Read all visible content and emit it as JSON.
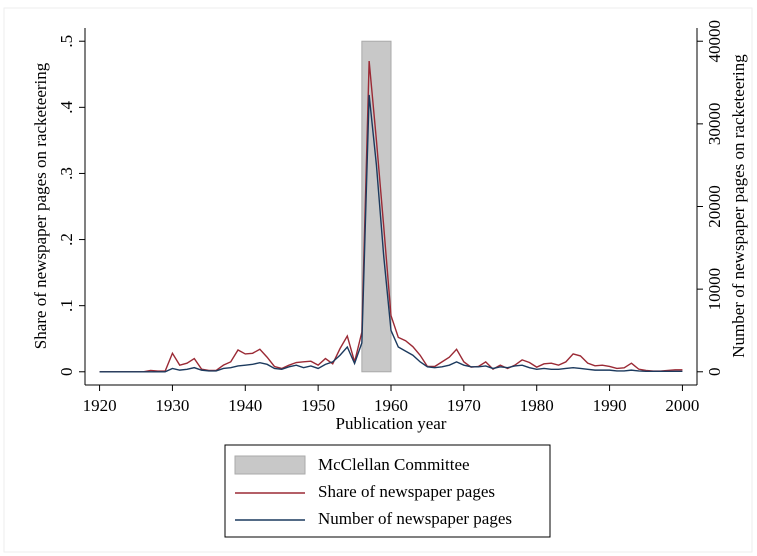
{
  "chart_data": {
    "type": "line",
    "x_label": "Publication year",
    "y_label": "Share of newspaper pages on racketeering",
    "y2_label": "Number of newspaper pages on racketeering",
    "x": [
      1920,
      1921,
      1922,
      1923,
      1924,
      1925,
      1926,
      1927,
      1928,
      1929,
      1930,
      1931,
      1932,
      1933,
      1934,
      1935,
      1936,
      1937,
      1938,
      1939,
      1940,
      1941,
      1942,
      1943,
      1944,
      1945,
      1946,
      1947,
      1948,
      1949,
      1950,
      1951,
      1952,
      1953,
      1954,
      1955,
      1956,
      1957,
      1958,
      1959,
      1960,
      1961,
      1962,
      1963,
      1964,
      1965,
      1966,
      1967,
      1968,
      1969,
      1970,
      1971,
      1972,
      1973,
      1974,
      1975,
      1976,
      1977,
      1978,
      1979,
      1980,
      1981,
      1982,
      1983,
      1984,
      1985,
      1986,
      1987,
      1988,
      1989,
      1990,
      1991,
      1992,
      1993,
      1994,
      1995,
      1996,
      1997,
      1998,
      1999,
      2000
    ],
    "series": [
      {
        "name": "Share of newspaper pages",
        "color": "#9b2a35",
        "values": [
          0,
          0,
          0,
          0,
          0,
          0,
          0,
          0.002,
          0.001,
          0.001,
          0.028,
          0.01,
          0.013,
          0.02,
          0.004,
          0.002,
          0.002,
          0.01,
          0.015,
          0.033,
          0.027,
          0.028,
          0.034,
          0.022,
          0.008,
          0.005,
          0.01,
          0.014,
          0.015,
          0.016,
          0.01,
          0.02,
          0.012,
          0.035,
          0.054,
          0.015,
          0.06,
          0.47,
          0.35,
          0.22,
          0.085,
          0.052,
          0.047,
          0.038,
          0.025,
          0.008,
          0.008,
          0.015,
          0.022,
          0.034,
          0.015,
          0.007,
          0.008,
          0.015,
          0.004,
          0.01,
          0.005,
          0.01,
          0.018,
          0.014,
          0.007,
          0.012,
          0.013,
          0.01,
          0.015,
          0.027,
          0.024,
          0.013,
          0.009,
          0.01,
          0.008,
          0.005,
          0.006,
          0.013,
          0.004,
          0.002,
          0.001,
          0.001,
          0.002,
          0.003,
          0.003
        ]
      },
      {
        "name": "Number of newspaper pages",
        "color": "#1c3a5e",
        "axis": "y2",
        "values": [
          0,
          0,
          0,
          0,
          0,
          0,
          0,
          0,
          0,
          0,
          400,
          200,
          300,
          500,
          200,
          100,
          100,
          400,
          500,
          700,
          800,
          900,
          1100,
          900,
          400,
          300,
          600,
          800,
          500,
          700,
          400,
          900,
          1200,
          2000,
          3000,
          1000,
          3500,
          33500,
          25000,
          14000,
          5000,
          3000,
          2500,
          2000,
          1200,
          600,
          500,
          600,
          800,
          1200,
          800,
          600,
          600,
          700,
          400,
          600,
          500,
          700,
          800,
          500,
          300,
          400,
          300,
          300,
          400,
          500,
          400,
          300,
          200,
          200,
          200,
          100,
          100,
          200,
          100,
          50,
          50,
          50,
          50,
          50,
          50
        ]
      }
    ],
    "shaded_region": {
      "name": "McClellan Committee",
      "x": [
        1956,
        1960
      ],
      "y": [
        0,
        0.5
      ],
      "color": "#c8c8c8"
    },
    "xlim": [
      1918,
      2002
    ],
    "xticks": [
      1920,
      1930,
      1940,
      1950,
      1960,
      1970,
      1980,
      1990,
      2000
    ],
    "ylim": [
      -0.02,
      0.52
    ],
    "yticks": [
      0,
      {
        "value": 0.1,
        "label": ".1"
      },
      {
        "value": 0.2,
        "label": ".2"
      },
      {
        "value": 0.3,
        "label": ".3"
      },
      {
        "value": 0.4,
        "label": ".4"
      },
      {
        "value": 0.5,
        "label": ".5"
      }
    ],
    "y2lim": [
      -1600,
      41600
    ],
    "y2ticks": [
      0,
      10000,
      20000,
      30000,
      40000
    ]
  }
}
